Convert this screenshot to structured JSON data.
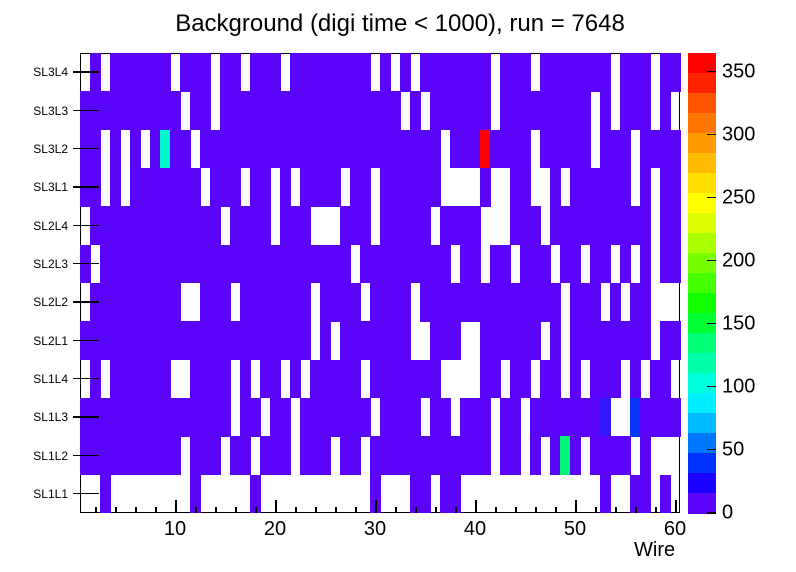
{
  "title": "Background (digi time < 1000), run = 7648",
  "x_axis": {
    "label": "Wire",
    "min": 0.5,
    "max": 60.5,
    "major_ticks": [
      10,
      20,
      30,
      40,
      50,
      60
    ],
    "minor_tick_step": 2
  },
  "y_axis": {
    "rows_top_to_bottom": [
      "SL3L4",
      "SL3L3",
      "SL3L2",
      "SL3L1",
      "SL2L4",
      "SL2L3",
      "SL2L2",
      "SL2L1",
      "SL1L4",
      "SL1L3",
      "SL1L2",
      "SL1L1"
    ]
  },
  "colorbar": {
    "min": 0,
    "max": 365,
    "tick_values": [
      0,
      50,
      100,
      150,
      200,
      250,
      300,
      350
    ],
    "colors_top_to_bottom": [
      "#FF0000",
      "#FF2200",
      "#FF5500",
      "#FF7700",
      "#FF9900",
      "#FFBB00",
      "#FFDD00",
      "#FFFF00",
      "#DDFF00",
      "#AAFF00",
      "#77FF00",
      "#44FF00",
      "#11FF00",
      "#00FF33",
      "#00FF77",
      "#00FFAA",
      "#00FFDD",
      "#00EEFF",
      "#00BBFF",
      "#0077FF",
      "#0033FF",
      "#1A00FF",
      "#5A05FA"
    ]
  },
  "chart_data": {
    "type": "heatmap",
    "xlabel": "Wire",
    "wires": 60,
    "legend": "pattern chars: . = empty(0), P = purple(low ~5), C = cyan(~130), R = red(~364), G = green(~170), B = blue(~65), D = dark blue(~35)",
    "value_map": {
      ".": 0,
      "P": 5,
      "C": 130,
      "R": 364,
      "G": 170,
      "B": 65,
      "D": 35
    },
    "color_map": {
      ".": null,
      "P": "#5A05FA",
      "C": "#00F7C8",
      "R": "#FF0000",
      "G": "#00F573",
      "B": "#0835F7",
      "D": "#3418FF"
    },
    "rows": [
      {
        "label": "SL3L4",
        "pattern": ".P.PPPPPP.PPP.PP.PPP.PPPPPPPP.P.P.PPPPPPP.PPP.PPPPPPP.PPP.PP"
      },
      {
        "label": "SL3L3",
        "pattern": "PPPPPPPPPP.PP.PPPPPPPPPPPPPPPPPP.P.PPPPPP.PPPPPPPPP.P.PPP.P."
      },
      {
        "label": "SL3L2",
        "pattern": "PP.P.P.PCPP.PPPPPPPPPPPPPPPPPPPPPPPP.PPPRPPPP.PPPPP.PPP.PPPP"
      },
      {
        "label": "SL3L1",
        "pattern": "PP.P.PPPPPPP.PPP.PP.P.PPPP.PP.PPPPPP....P..PP..P.PPPPPP.P.PP"
      },
      {
        "label": "SL2L4",
        "pattern": ".PPPPPPPPPPPPP.PPPP.PPP...PPP.PPPPP.PPPP...PPP.PPPPPPPPPP.PP"
      },
      {
        "label": "SL2L3",
        "pattern": "P.PPPPPPPPPPPPPPPPPPPPPPPPP.PPPPPPPPP.PP.PP.PPP.PP.PP.P.P.PP"
      },
      {
        "label": "SL2L2",
        "pattern": ".PPPPPPPPP..PPP.PPPPPPP.PPPP.PPPP.PPPPPPPPPPPPPP.PPP.P.PP..."
      },
      {
        "label": "SL2L1",
        "pattern": "PPPPPPPPPPPPPPPPPPPPPPP.P.PPPPPPP..PPP..PPPPPP.P.PPPPPPPP.PP"
      },
      {
        "label": "SL1L4",
        "pattern": ".P.PPPPPP..PPPP.P.PP.P.PPPPP.PPPPPPP....PP.PP.PP.P.PPP.P.PP."
      },
      {
        "label": "SL1L3",
        "pattern": "PPPPPPPPPPPPPPP.PP.PP.PPPPPPP.PPPP.PP.PPP.PP.PPPPPPPD..BPPPP"
      },
      {
        "label": "SL1L2",
        "pattern": "PPPPPPPPPP.PPP.PP.PPP.PPP.PP.PPPPPPPPPPPP.PP.P.PGP.PPPP.P..."
      },
      {
        "label": "SL1L1",
        "pattern": "..P........P.....P...........P...PP.PP..............P..PP.P..."
      }
    ],
    "special_cells": [
      {
        "row": "SL3L2",
        "wire": 9,
        "approx_value": 130,
        "color": "#00F7C8"
      },
      {
        "row": "SL3L2",
        "wire": 41,
        "approx_value": 364,
        "color": "#FF0000"
      },
      {
        "row": "SL1L3",
        "wire": 53,
        "approx_value": 35,
        "color": "#3418FF"
      },
      {
        "row": "SL1L3",
        "wire": 56,
        "approx_value": 65,
        "color": "#0835F7"
      },
      {
        "row": "SL1L2",
        "wire": 49,
        "approx_value": 170,
        "color": "#00F573"
      }
    ]
  }
}
